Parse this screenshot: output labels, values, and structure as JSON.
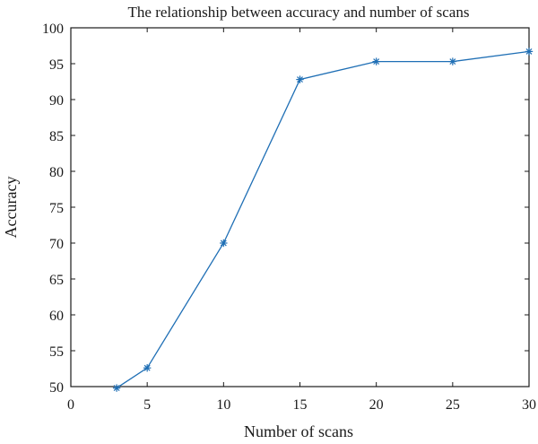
{
  "chart_data": {
    "type": "line",
    "title": "The relationship between accuracy and number of scans",
    "xlabel": "Number of scans",
    "ylabel": "Accuracy",
    "xlim": [
      0,
      30
    ],
    "ylim": [
      50,
      100
    ],
    "xticks": [
      0,
      5,
      10,
      15,
      20,
      25,
      30
    ],
    "yticks": [
      50,
      55,
      60,
      65,
      70,
      75,
      80,
      85,
      90,
      95,
      100
    ],
    "grid": false,
    "series": [
      {
        "x": [
          3,
          5,
          10,
          15,
          20,
          25,
          30
        ],
        "values": [
          49.8,
          52.6,
          70.0,
          92.8,
          95.3,
          95.3,
          96.7
        ],
        "color": "#1f6fb5",
        "marker": "asterisk"
      }
    ]
  }
}
